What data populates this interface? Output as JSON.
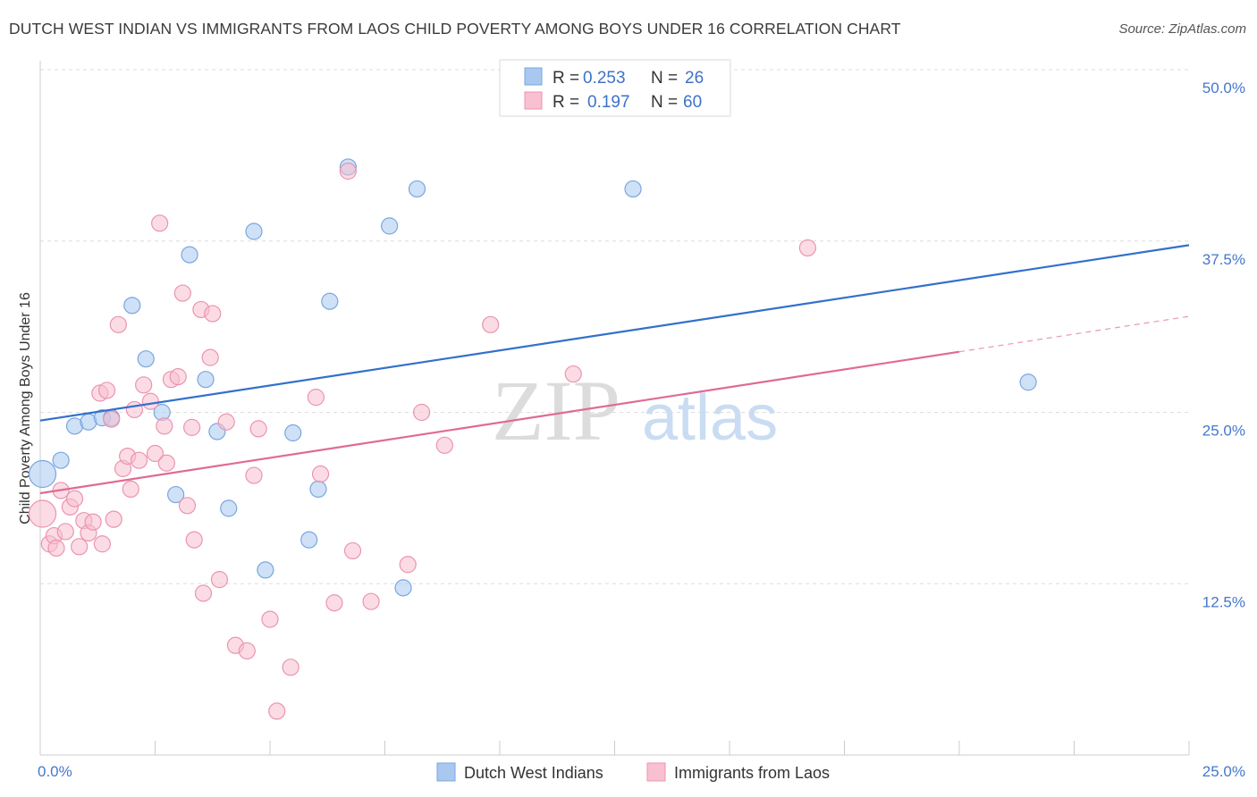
{
  "title": "DUTCH WEST INDIAN VS IMMIGRANTS FROM LAOS CHILD POVERTY AMONG BOYS UNDER 16 CORRELATION CHART",
  "source": "Source: ZipAtlas.com",
  "watermark": {
    "zip": "ZIP",
    "atlas": "atlas"
  },
  "chart_data": {
    "type": "scatter",
    "ylabel": "Child Poverty Among Boys Under 16",
    "xlim": [
      0,
      25
    ],
    "ylim": [
      0,
      50
    ],
    "x_tick_labels": [
      "0.0%",
      "25.0%"
    ],
    "y_ticks": [
      12.5,
      25.0,
      37.5,
      50.0
    ],
    "y_tick_labels": [
      "12.5%",
      "25.0%",
      "37.5%",
      "50.0%"
    ],
    "legend": [
      {
        "r_label": "R =",
        "r_value": "0.253",
        "n_label": "N =",
        "n_value": "26"
      },
      {
        "r_label": "R =",
        "r_value": "0.197",
        "n_label": "N =",
        "n_value": "60"
      }
    ],
    "series": [
      {
        "name": "Dutch West Indians",
        "color": "#a8c8f0",
        "stroke": "#7aa6de",
        "line_color": "#3370cc",
        "trend": {
          "x0": 0,
          "y0": 24.4,
          "x1": 25,
          "y1": 37.2,
          "solid_until": 25
        },
        "points": [
          [
            0.05,
            20.5,
            15
          ],
          [
            0.45,
            21.5,
            9
          ],
          [
            0.75,
            24.0,
            9
          ],
          [
            1.05,
            24.3,
            9
          ],
          [
            1.35,
            24.6,
            9
          ],
          [
            1.55,
            24.6,
            9
          ],
          [
            2.0,
            32.8,
            9
          ],
          [
            2.3,
            28.9,
            9
          ],
          [
            2.65,
            25.0,
            9
          ],
          [
            2.95,
            19.0,
            9
          ],
          [
            3.25,
            36.5,
            9
          ],
          [
            3.6,
            27.4,
            9
          ],
          [
            3.85,
            23.6,
            9
          ],
          [
            4.1,
            18.0,
            9
          ],
          [
            4.65,
            38.2,
            9
          ],
          [
            4.9,
            13.5,
            9
          ],
          [
            5.5,
            23.5,
            9
          ],
          [
            5.85,
            15.7,
            9
          ],
          [
            6.05,
            19.4,
            9
          ],
          [
            6.3,
            33.1,
            9
          ],
          [
            6.7,
            42.9,
            9
          ],
          [
            7.6,
            38.6,
            9
          ],
          [
            7.9,
            12.2,
            9
          ],
          [
            8.2,
            41.3,
            9
          ],
          [
            12.9,
            41.3,
            9
          ],
          [
            21.5,
            27.2,
            9
          ]
        ]
      },
      {
        "name": "Immigrants from Laos",
        "color": "#f8c0d0",
        "stroke": "#ec93b0",
        "line_color": "#e06a94",
        "trend": {
          "x0": 0,
          "y0": 19.1,
          "x1": 25,
          "y1": 32.0,
          "solid_until": 20.0
        },
        "points": [
          [
            0.05,
            17.6,
            15
          ],
          [
            0.2,
            15.4,
            9
          ],
          [
            0.3,
            16.0,
            9
          ],
          [
            0.35,
            15.1,
            9
          ],
          [
            0.45,
            19.3,
            9
          ],
          [
            0.55,
            16.3,
            9
          ],
          [
            0.65,
            18.1,
            9
          ],
          [
            0.75,
            18.7,
            9
          ],
          [
            0.85,
            15.2,
            9
          ],
          [
            0.95,
            17.1,
            9
          ],
          [
            1.05,
            16.2,
            9
          ],
          [
            1.15,
            17.0,
            9
          ],
          [
            1.3,
            26.4,
            9
          ],
          [
            1.35,
            15.4,
            9
          ],
          [
            1.45,
            26.6,
            9
          ],
          [
            1.55,
            24.5,
            9
          ],
          [
            1.6,
            17.2,
            9
          ],
          [
            1.7,
            31.4,
            9
          ],
          [
            1.8,
            20.9,
            9
          ],
          [
            1.9,
            21.8,
            9
          ],
          [
            1.97,
            19.4,
            9
          ],
          [
            2.05,
            25.2,
            9
          ],
          [
            2.15,
            21.5,
            9
          ],
          [
            2.25,
            27.0,
            9
          ],
          [
            2.4,
            25.8,
            9
          ],
          [
            2.5,
            22.0,
            9
          ],
          [
            2.6,
            38.8,
            9
          ],
          [
            2.7,
            24.0,
            9
          ],
          [
            2.75,
            21.3,
            9
          ],
          [
            2.85,
            27.4,
            9
          ],
          [
            3.0,
            27.6,
            9
          ],
          [
            3.1,
            33.7,
            9
          ],
          [
            3.2,
            18.2,
            9
          ],
          [
            3.3,
            23.9,
            9
          ],
          [
            3.35,
            15.7,
            9
          ],
          [
            3.5,
            32.5,
            9
          ],
          [
            3.55,
            11.8,
            9
          ],
          [
            3.7,
            29.0,
            9
          ],
          [
            3.75,
            32.2,
            9
          ],
          [
            3.9,
            12.8,
            9
          ],
          [
            4.05,
            24.3,
            9
          ],
          [
            4.25,
            8.0,
            9
          ],
          [
            4.5,
            7.6,
            9
          ],
          [
            4.65,
            20.4,
            9
          ],
          [
            4.75,
            23.8,
            9
          ],
          [
            5.0,
            9.9,
            9
          ],
          [
            5.15,
            3.2,
            9
          ],
          [
            5.45,
            6.4,
            9
          ],
          [
            6.0,
            26.1,
            9
          ],
          [
            6.1,
            20.5,
            9
          ],
          [
            6.4,
            11.1,
            9
          ],
          [
            6.7,
            42.6,
            9
          ],
          [
            6.8,
            14.9,
            9
          ],
          [
            7.2,
            11.2,
            9
          ],
          [
            8.0,
            13.9,
            9
          ],
          [
            8.3,
            25.0,
            9
          ],
          [
            8.8,
            22.6,
            9
          ],
          [
            9.8,
            31.4,
            9
          ],
          [
            11.6,
            27.8,
            9
          ],
          [
            16.7,
            37.0,
            9
          ]
        ]
      }
    ]
  }
}
